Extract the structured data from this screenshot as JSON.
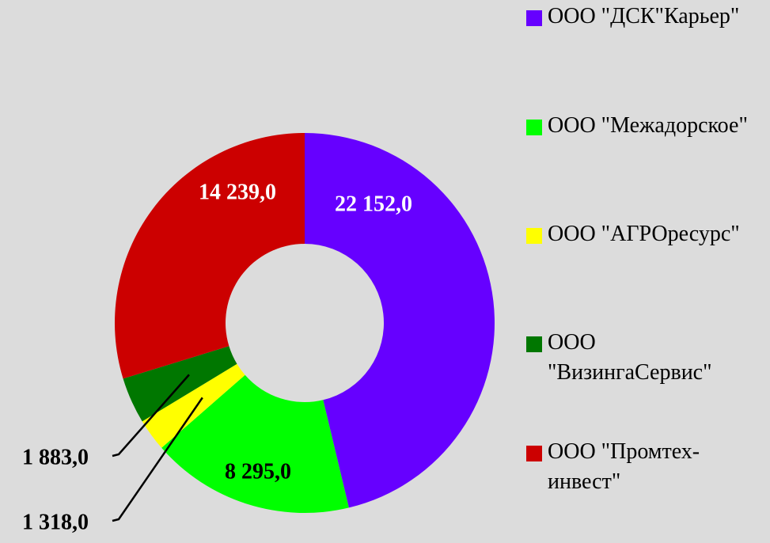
{
  "chart_data": {
    "type": "donut",
    "categories": [
      "ООО \"ДСК\"Карьер\"",
      "ООО \"Межадорское\"",
      "ООО \"АГРОресурс\"",
      "ООО \"ВизингаСервис\"",
      "ООО \"Промтех-инвест\""
    ],
    "values": [
      22152,
      8295,
      1318,
      1883,
      14239
    ],
    "value_labels": [
      "22 152,0",
      "8 295,0",
      "1 318,0",
      "1 883,0",
      "14 239,0"
    ],
    "colors": [
      "#6600ff",
      "#00ff00",
      "#ffff00",
      "#007700",
      "#cc0000"
    ],
    "legend": "right"
  }
}
